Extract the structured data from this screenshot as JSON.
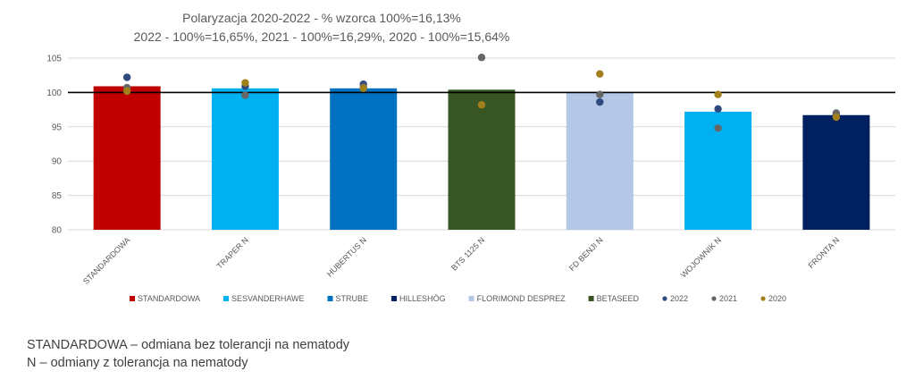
{
  "chart_data": {
    "type": "bar",
    "title": [
      "Polaryzacja 2020-2022 - % wzorca 100%=16,13%",
      "2022 - 100%=16,65%, 2021 - 100%=16,29%, 2020 - 100%=15,64%"
    ],
    "ylim": [
      80,
      105
    ],
    "yticks": [
      80,
      85,
      90,
      95,
      100,
      105
    ],
    "reference_line": 100,
    "grid": true,
    "legend_position": "bottom",
    "categories": [
      "STANDARDOWA",
      "TRAPER N",
      "HUBERTUS N",
      "BTS 1125 N",
      "FD BENJI N",
      "WOJOWNIK N",
      "FRONTA N"
    ],
    "bars": {
      "values": [
        100.9,
        100.6,
        100.6,
        100.4,
        100.1,
        97.2,
        96.7
      ],
      "breeders": [
        "STANDARDOWA",
        "SESVANDERHAWE",
        "STRUBE",
        "BETASEED",
        "FLORIMOND DESPREZ",
        "SESVANDERHAWE",
        "HILLESHÖG"
      ]
    },
    "breeder_legend": [
      {
        "name": "STANDARDOWA",
        "color": "#C00000"
      },
      {
        "name": "SESVANDERHAWE",
        "color": "#00B0F0"
      },
      {
        "name": "STRUBE",
        "color": "#0070C0"
      },
      {
        "name": "HILLESHÖG",
        "color": "#002060"
      },
      {
        "name": "FLORIMOND DESPREZ",
        "color": "#B4C7E7"
      },
      {
        "name": "BETASEED",
        "color": "#375623"
      }
    ],
    "series": [
      {
        "name": "2022",
        "color": "#2F4A7F",
        "values": [
          102.2,
          100.9,
          101.2,
          null,
          98.6,
          97.6,
          96.7
        ]
      },
      {
        "name": "2021",
        "color": "#666666",
        "values": [
          100.7,
          99.6,
          100.8,
          105.1,
          99.7,
          94.8,
          97.0
        ]
      },
      {
        "name": "2020",
        "color": "#A17F1A",
        "values": [
          100.2,
          101.4,
          100.6,
          98.2,
          102.7,
          99.7,
          96.4
        ]
      }
    ]
  },
  "notes": [
    "STANDARDOWA – odmiana bez tolerancji na nematody",
    "N – odmiany z tolerancja na nematody"
  ]
}
